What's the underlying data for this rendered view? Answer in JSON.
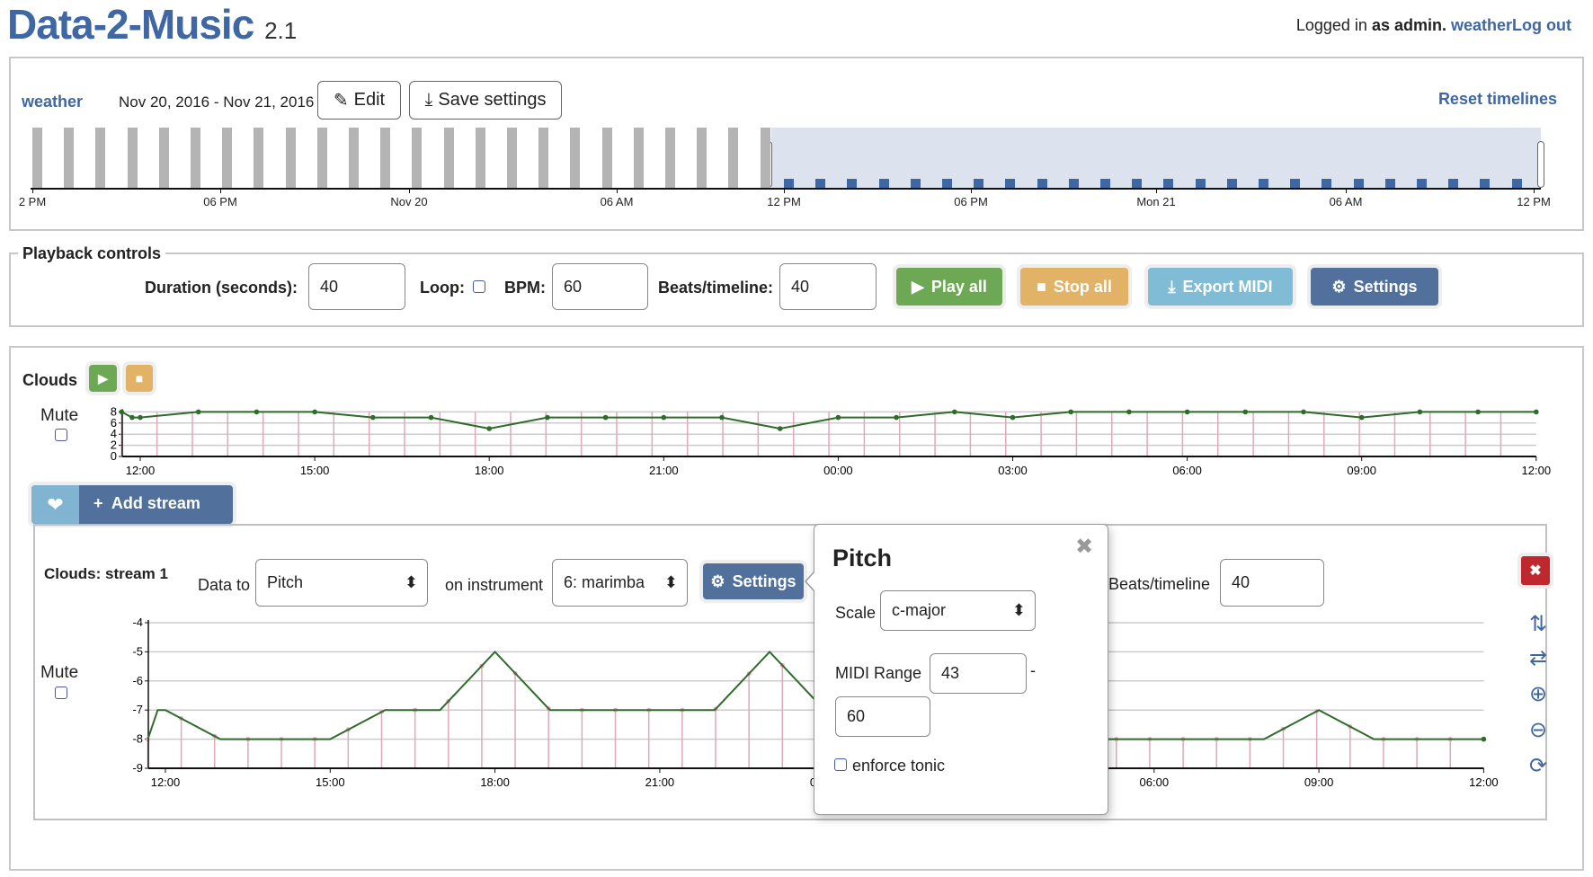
{
  "header": {
    "app_title": "Data-2-Music",
    "version": "2.1",
    "logged_in_prefix": "Logged in",
    "logged_in_as": "as admin.",
    "user_link": "weatherLog out"
  },
  "dataset": {
    "name": "weather",
    "date_range": "Nov 20, 2016 - Nov 21, 2016",
    "edit_label": "Edit",
    "save_label": "Save settings",
    "reset_label": "Reset timelines",
    "timeline_ticks": [
      "2 PM",
      "06 PM",
      "Nov 20",
      "06 AM",
      "12 PM",
      "06 PM",
      "Mon 21",
      "06 AM",
      "12 PM"
    ],
    "bar_count": 24,
    "selected_count": 24
  },
  "playback": {
    "legend": "Playback controls",
    "duration_label": "Duration (seconds):",
    "duration": "40",
    "loop_label": "Loop:",
    "loop_checked": false,
    "bpm_label": "BPM:",
    "bpm": "60",
    "beats_label": "Beats/timeline:",
    "beats": "40",
    "play_all": "Play all",
    "stop_all": "Stop all",
    "export_midi": "Export MIDI",
    "settings": "Settings"
  },
  "timeline": {
    "name": "Clouds",
    "mute_label": "Mute",
    "add_stream": "Add stream"
  },
  "stream": {
    "title": "Clouds: stream 1",
    "data_to_label": "Data to",
    "data_to": "Pitch",
    "instrument_label": "on instrument",
    "instrument": "6: marimba",
    "settings": "Settings",
    "beats_label": "Beats/timeline",
    "beats": "40",
    "mute_label": "Mute"
  },
  "popover": {
    "title": "Pitch",
    "scale_label": "Scale",
    "scale": "c-major",
    "midi_label": "MIDI Range",
    "midi_min": "43",
    "dash": "-",
    "midi_max": "60",
    "enforce_tonic": "enforce tonic"
  },
  "colors": {
    "brand": "#3f67a3",
    "play": "#6da854",
    "stop": "#e2b266",
    "export": "#80bcd6",
    "settings": "#52709c",
    "delete": "#c0282f",
    "line": "#2f6b2a",
    "beat": "#e0a8b8"
  },
  "chart_data": [
    {
      "type": "line",
      "title": "Clouds",
      "x_unit": "hours from 12:00",
      "x": [
        -0.32,
        -0.14,
        0,
        1,
        2,
        3,
        4,
        5,
        6,
        7,
        8,
        9,
        10,
        11,
        12,
        13,
        14,
        15,
        16,
        17,
        18,
        19,
        20,
        21,
        22,
        23,
        24
      ],
      "values": [
        8,
        7,
        7,
        8,
        8,
        8,
        7,
        7,
        5,
        7,
        7,
        7,
        7,
        5,
        7,
        7,
        8,
        7,
        8,
        8,
        8,
        8,
        8,
        7,
        8,
        8,
        8
      ],
      "ylim": [
        0,
        8
      ],
      "yticks": [
        "0",
        "2",
        "4",
        "6",
        "8"
      ],
      "xticks": [
        "12:00",
        "15:00",
        "18:00",
        "21:00",
        "00:00",
        "03:00",
        "06:00",
        "09:00",
        "12:00"
      ]
    },
    {
      "type": "line",
      "title": "Clouds: stream 1 (Pitch)",
      "x_unit": "hours from 12:00",
      "x": [
        -0.32,
        -0.14,
        0,
        1,
        2,
        3,
        4,
        5,
        6,
        7,
        8,
        9,
        10,
        11,
        12,
        13,
        14,
        15,
        16,
        17,
        18,
        19,
        20,
        21,
        22,
        23,
        24
      ],
      "values": [
        -8,
        -7,
        -7,
        -8,
        -8,
        -8,
        -7,
        -7,
        -5,
        -7,
        -7,
        -7,
        -7,
        -5,
        -7,
        -7,
        -8,
        -7,
        -8,
        -8,
        -8,
        -8,
        -8,
        -7,
        -8,
        -8,
        -8
      ],
      "ylim": [
        -9,
        -4
      ],
      "yticks": [
        "-4",
        "-5",
        "-6",
        "-7",
        "-8",
        "-9"
      ],
      "xticks": [
        "12:00",
        "15:00",
        "18:00",
        "21:00",
        "00:00",
        "03:00",
        "06:00",
        "09:00",
        "12:00"
      ],
      "beats": 40
    }
  ]
}
